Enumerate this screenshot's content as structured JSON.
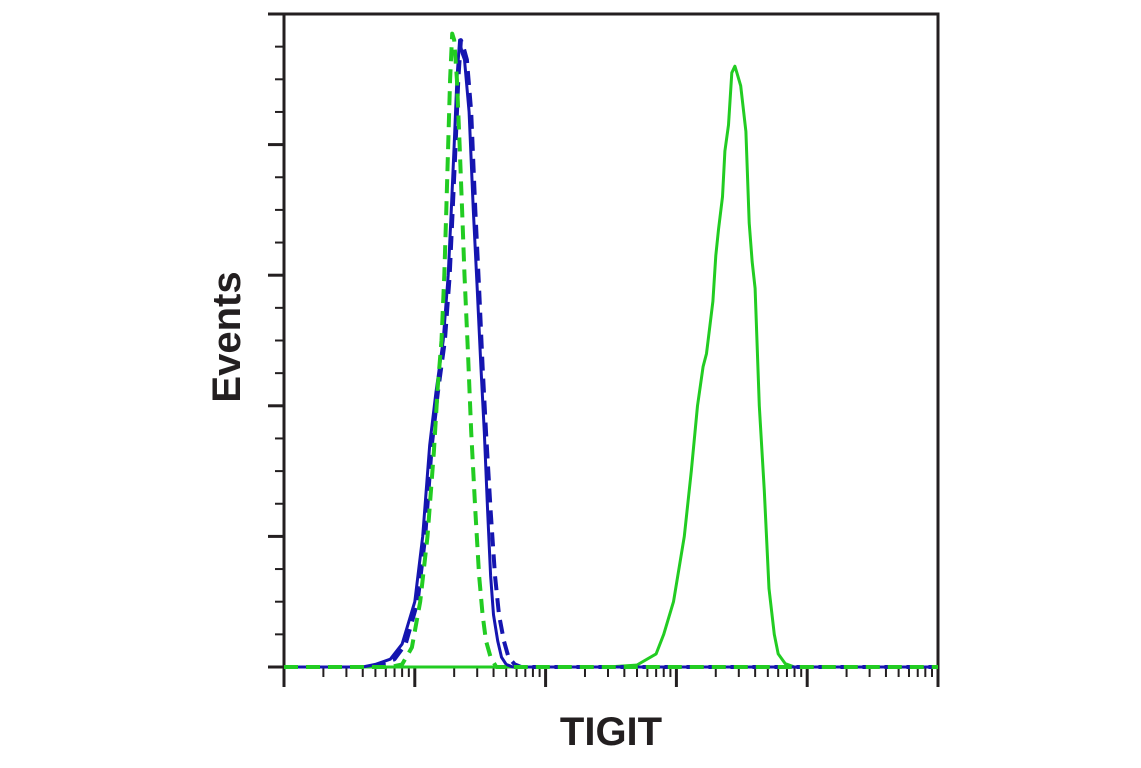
{
  "chart_data": {
    "type": "line",
    "title": "",
    "xlabel": "TIGIT",
    "ylabel": "Events",
    "x_scale": "log",
    "xlim": [
      1,
      100000
    ],
    "ylim": [
      0,
      1.0
    ],
    "grid": false,
    "legend": "none",
    "y_major_ticks": [
      0,
      0.2,
      0.4,
      0.6,
      0.8,
      1.0
    ],
    "series": [
      {
        "color": "#1d9bf0",
        "stroke": "solid",
        "data_color": "#22cc22",
        "points": [
          [
            1,
            0
          ],
          [
            300,
            0
          ],
          [
            500,
            0.003
          ],
          [
            700,
            0.02
          ],
          [
            800,
            0.05
          ],
          [
            950,
            0.1
          ],
          [
            1150,
            0.2
          ],
          [
            1300,
            0.3
          ],
          [
            1450,
            0.4
          ],
          [
            1600,
            0.46
          ],
          [
            1700,
            0.48
          ],
          [
            1900,
            0.56
          ],
          [
            2000,
            0.63
          ],
          [
            2100,
            0.67
          ],
          [
            2250,
            0.72
          ],
          [
            2350,
            0.79
          ],
          [
            2500,
            0.83
          ],
          [
            2650,
            0.91
          ],
          [
            2800,
            0.92
          ],
          [
            2900,
            0.91
          ],
          [
            3100,
            0.89
          ],
          [
            3400,
            0.82
          ],
          [
            3600,
            0.68
          ],
          [
            3800,
            0.62
          ],
          [
            4000,
            0.58
          ],
          [
            4300,
            0.4
          ],
          [
            4700,
            0.27
          ],
          [
            5100,
            0.12
          ],
          [
            5600,
            0.05
          ],
          [
            6000,
            0.02
          ],
          [
            6800,
            0.005
          ],
          [
            8000,
            0
          ],
          [
            100000,
            0
          ]
        ]
      },
      {
        "color": "#1515b0",
        "stroke": "solid",
        "points": [
          [
            1,
            0
          ],
          [
            4,
            0
          ],
          [
            5,
            0.004
          ],
          [
            6.5,
            0.012
          ],
          [
            8,
            0.035
          ],
          [
            10,
            0.1
          ],
          [
            11.5,
            0.2
          ],
          [
            13,
            0.34
          ],
          [
            14.5,
            0.42
          ],
          [
            16.5,
            0.5
          ],
          [
            18,
            0.6
          ],
          [
            19,
            0.7
          ],
          [
            20,
            0.8
          ],
          [
            21,
            0.9
          ],
          [
            22,
            0.96
          ],
          [
            23,
            0.94
          ],
          [
            24,
            0.93
          ],
          [
            26,
            0.85
          ],
          [
            28,
            0.7
          ],
          [
            30,
            0.58
          ],
          [
            32,
            0.46
          ],
          [
            34,
            0.36
          ],
          [
            36,
            0.24
          ],
          [
            38,
            0.14
          ],
          [
            40,
            0.08
          ],
          [
            43,
            0.04
          ],
          [
            46,
            0.015
          ],
          [
            50,
            0.004
          ],
          [
            56,
            0
          ],
          [
            100000,
            0
          ]
        ]
      },
      {
        "color": "#1515b0",
        "stroke": "dashed",
        "points": [
          [
            1,
            0
          ],
          [
            4.5,
            0
          ],
          [
            5.5,
            0.004
          ],
          [
            7,
            0.012
          ],
          [
            8.5,
            0.035
          ],
          [
            10.5,
            0.1
          ],
          [
            12,
            0.2
          ],
          [
            13.5,
            0.34
          ],
          [
            15,
            0.42
          ],
          [
            17,
            0.5
          ],
          [
            18.5,
            0.6
          ],
          [
            19.5,
            0.7
          ],
          [
            20.5,
            0.8
          ],
          [
            21.5,
            0.9
          ],
          [
            22.5,
            0.96
          ],
          [
            23.5,
            0.95
          ],
          [
            25,
            0.93
          ],
          [
            27,
            0.85
          ],
          [
            29,
            0.7
          ],
          [
            31,
            0.58
          ],
          [
            33,
            0.46
          ],
          [
            35,
            0.36
          ],
          [
            38,
            0.24
          ],
          [
            41,
            0.14
          ],
          [
            44,
            0.08
          ],
          [
            48,
            0.04
          ],
          [
            52,
            0.015
          ],
          [
            58,
            0.004
          ],
          [
            65,
            0
          ],
          [
            100000,
            0
          ]
        ]
      },
      {
        "color": "#22cc22",
        "stroke": "dashed",
        "points": [
          [
            1,
            0
          ],
          [
            6.5,
            0
          ],
          [
            8,
            0.004
          ],
          [
            9.5,
            0.03
          ],
          [
            11,
            0.1
          ],
          [
            12.5,
            0.2
          ],
          [
            14,
            0.33
          ],
          [
            15,
            0.43
          ],
          [
            16,
            0.5
          ],
          [
            16.8,
            0.6
          ],
          [
            17.4,
            0.7
          ],
          [
            18,
            0.8
          ],
          [
            18.6,
            0.9
          ],
          [
            19.3,
            0.97
          ],
          [
            20,
            0.96
          ],
          [
            21,
            0.9
          ],
          [
            22,
            0.8
          ],
          [
            23,
            0.7
          ],
          [
            24,
            0.6
          ],
          [
            25.5,
            0.48
          ],
          [
            27,
            0.36
          ],
          [
            29,
            0.24
          ],
          [
            31,
            0.14
          ],
          [
            33,
            0.08
          ],
          [
            35,
            0.04
          ],
          [
            38,
            0.015
          ],
          [
            42,
            0
          ],
          [
            100000,
            0
          ]
        ]
      }
    ]
  }
}
